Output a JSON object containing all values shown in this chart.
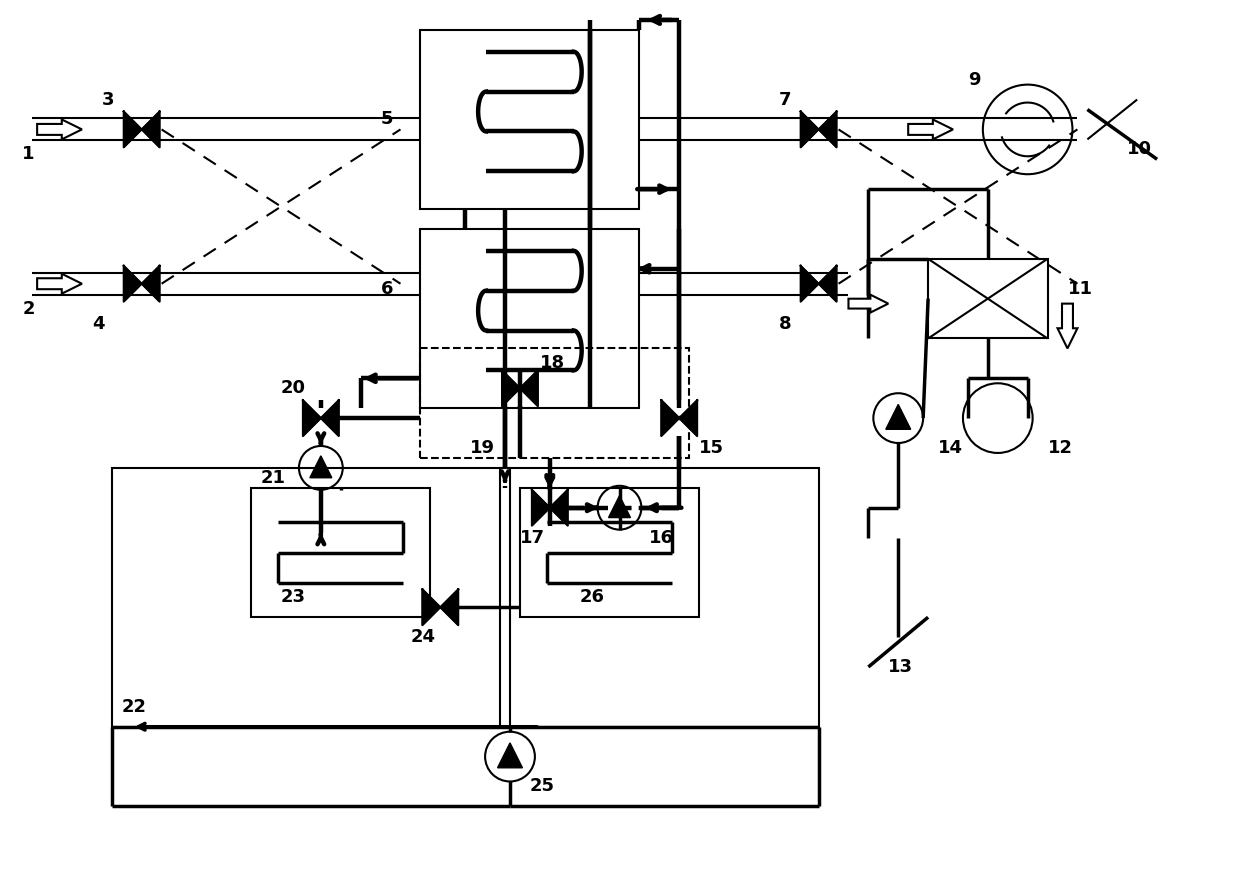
{
  "bg_color": "#ffffff",
  "line_color": "#000000",
  "figsize": [
    12.39,
    8.86
  ],
  "dpi": 100,
  "lw_thin": 1.5,
  "lw_med": 2.5,
  "lw_thick": 3.2,
  "label_fs": 13
}
